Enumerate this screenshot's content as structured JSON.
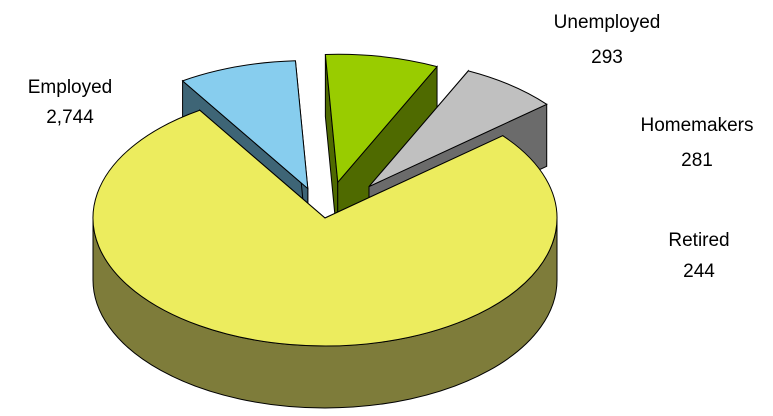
{
  "chart_data": {
    "type": "pie",
    "style": "3d-exploded",
    "legend": "none",
    "slices": [
      {
        "name": "Employed",
        "value_label": "2,744",
        "value": 2744,
        "color": "#ecec5e",
        "side_color": "#7e7c3a"
      },
      {
        "name": "Unemployed",
        "value_label": "293",
        "value": 293,
        "color": "#87cdee",
        "side_color": "#3e6576"
      },
      {
        "name": "Homemakers",
        "value_label": "281",
        "value": 281,
        "color": "#99cc00",
        "side_color": "#4f6a00"
      },
      {
        "name": "Retired",
        "value_label": "244",
        "value": 244,
        "color": "#c0c0c0",
        "side_color": "#6b6b6b"
      }
    ]
  }
}
